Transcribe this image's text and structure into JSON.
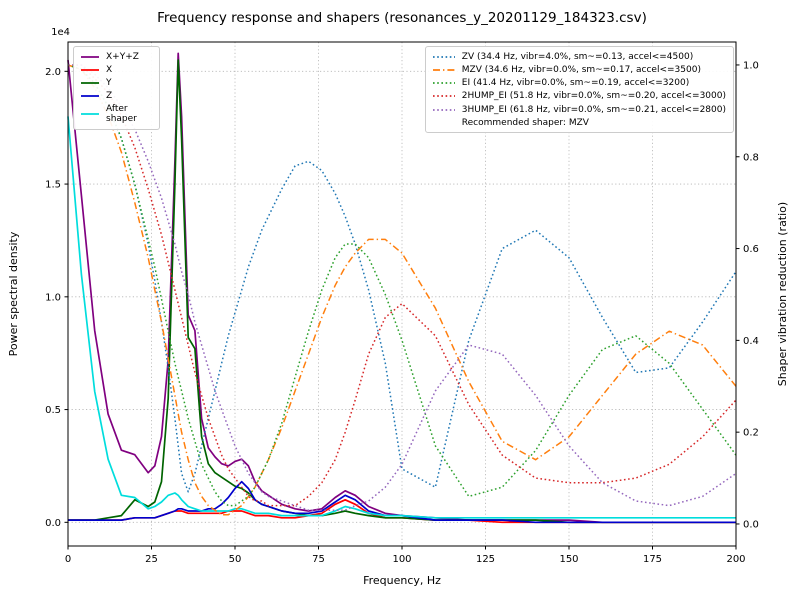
{
  "chart_data": {
    "type": "line",
    "title": "Frequency response and shapers (resonances_y_20201129_184323.csv)",
    "xlabel": "Frequency, Hz",
    "ylabel_left": "Power spectral density",
    "ylabel_right": "Shaper vibration reduction (ratio)",
    "y_left_offset_text": "1e4",
    "y_left_unit_multiplier": 10000,
    "grid": true,
    "xlim": [
      0,
      200
    ],
    "y_left_lim": [
      -0.105,
      2.13
    ],
    "y_right_lim": [
      -0.048,
      1.05
    ],
    "x_ticks": [
      0,
      25,
      50,
      75,
      100,
      125,
      150,
      175,
      200
    ],
    "y_left_ticks": [
      0.0,
      0.5,
      1.0,
      1.5,
      2.0
    ],
    "y_right_ticks": [
      0.0,
      0.2,
      0.4,
      0.6,
      0.8,
      1.0
    ],
    "x": [
      0,
      4,
      8,
      12,
      16,
      20,
      24,
      26,
      28,
      30,
      32,
      33,
      34,
      36,
      38,
      40,
      42,
      44,
      46,
      48,
      50,
      52,
      54,
      56,
      58,
      60,
      64,
      68,
      72,
      76,
      80,
      83,
      86,
      90,
      95,
      100,
      110,
      120,
      130,
      140,
      150,
      160,
      170,
      180,
      190,
      200
    ],
    "psd_series": [
      {
        "name": "X+Y+Z",
        "axis": "left",
        "color": "#800080",
        "style": "solid",
        "values": [
          2.05,
          1.45,
          0.85,
          0.48,
          0.32,
          0.3,
          0.22,
          0.25,
          0.38,
          0.72,
          1.6,
          2.08,
          1.8,
          0.92,
          0.85,
          0.46,
          0.33,
          0.29,
          0.26,
          0.25,
          0.27,
          0.28,
          0.25,
          0.18,
          0.14,
          0.12,
          0.08,
          0.06,
          0.05,
          0.06,
          0.11,
          0.14,
          0.12,
          0.07,
          0.04,
          0.03,
          0.02,
          0.01,
          0.01,
          0.01,
          0.01,
          0.0,
          0.0,
          0.0,
          0.0,
          0.0
        ]
      },
      {
        "name": "X",
        "axis": "left",
        "color": "#ff0000",
        "style": "solid",
        "values": [
          0.01,
          0.01,
          0.01,
          0.01,
          0.01,
          0.02,
          0.02,
          0.02,
          0.03,
          0.04,
          0.05,
          0.05,
          0.05,
          0.04,
          0.04,
          0.04,
          0.04,
          0.04,
          0.04,
          0.05,
          0.05,
          0.05,
          0.04,
          0.03,
          0.03,
          0.03,
          0.02,
          0.02,
          0.03,
          0.04,
          0.08,
          0.1,
          0.08,
          0.04,
          0.02,
          0.02,
          0.01,
          0.01,
          0.0,
          0.0,
          0.0,
          0.0,
          0.0,
          0.0,
          0.0,
          0.0
        ]
      },
      {
        "name": "Y",
        "axis": "left",
        "color": "#006400",
        "style": "solid",
        "values": [
          0.01,
          0.01,
          0.01,
          0.02,
          0.03,
          0.1,
          0.07,
          0.09,
          0.18,
          0.55,
          1.5,
          2.05,
          1.7,
          0.82,
          0.77,
          0.38,
          0.26,
          0.22,
          0.2,
          0.18,
          0.16,
          0.15,
          0.13,
          0.1,
          0.08,
          0.07,
          0.05,
          0.04,
          0.03,
          0.03,
          0.04,
          0.05,
          0.04,
          0.03,
          0.02,
          0.02,
          0.01,
          0.01,
          0.01,
          0.01,
          0.0,
          0.0,
          0.0,
          0.0,
          0.0,
          0.0
        ]
      },
      {
        "name": "Z",
        "axis": "left",
        "color": "#0000cc",
        "style": "solid",
        "values": [
          0.01,
          0.01,
          0.01,
          0.01,
          0.01,
          0.02,
          0.02,
          0.02,
          0.03,
          0.04,
          0.05,
          0.06,
          0.06,
          0.05,
          0.05,
          0.05,
          0.06,
          0.06,
          0.08,
          0.11,
          0.15,
          0.18,
          0.15,
          0.1,
          0.08,
          0.07,
          0.05,
          0.04,
          0.04,
          0.05,
          0.09,
          0.12,
          0.1,
          0.05,
          0.03,
          0.03,
          0.01,
          0.01,
          0.01,
          0.0,
          0.0,
          0.0,
          0.0,
          0.0,
          0.0,
          0.0
        ]
      },
      {
        "name": "After shaper",
        "axis": "left",
        "color": "#00dddd",
        "style": "solid",
        "values": [
          1.8,
          1.1,
          0.58,
          0.28,
          0.12,
          0.11,
          0.06,
          0.07,
          0.09,
          0.12,
          0.13,
          0.12,
          0.1,
          0.07,
          0.06,
          0.05,
          0.05,
          0.05,
          0.05,
          0.05,
          0.06,
          0.06,
          0.05,
          0.04,
          0.04,
          0.04,
          0.03,
          0.03,
          0.03,
          0.03,
          0.05,
          0.07,
          0.06,
          0.04,
          0.03,
          0.03,
          0.02,
          0.02,
          0.02,
          0.02,
          0.02,
          0.02,
          0.02,
          0.02,
          0.02,
          0.02
        ]
      }
    ],
    "shaper_series": [
      {
        "name": "ZV",
        "axis": "right",
        "color": "#1f77b4",
        "style": "dotted",
        "values": [
          1.0,
          0.99,
          0.96,
          0.91,
          0.84,
          0.74,
          0.61,
          0.53,
          0.44,
          0.34,
          0.23,
          0.17,
          0.11,
          0.07,
          0.11,
          0.17,
          0.23,
          0.29,
          0.35,
          0.41,
          0.46,
          0.51,
          0.56,
          0.6,
          0.64,
          0.67,
          0.73,
          0.78,
          0.79,
          0.77,
          0.72,
          0.67,
          0.61,
          0.51,
          0.35,
          0.12,
          0.08,
          0.4,
          0.6,
          0.64,
          0.58,
          0.45,
          0.33,
          0.34,
          0.44,
          0.55
        ]
      },
      {
        "name": "MZV",
        "axis": "right",
        "color": "#ff7f0e",
        "style": "dashdot",
        "values": [
          1.0,
          0.99,
          0.95,
          0.89,
          0.81,
          0.7,
          0.58,
          0.51,
          0.44,
          0.36,
          0.28,
          0.24,
          0.2,
          0.14,
          0.09,
          0.06,
          0.04,
          0.03,
          0.02,
          0.02,
          0.03,
          0.04,
          0.06,
          0.08,
          0.11,
          0.14,
          0.21,
          0.29,
          0.37,
          0.45,
          0.52,
          0.56,
          0.59,
          0.62,
          0.62,
          0.59,
          0.47,
          0.31,
          0.18,
          0.14,
          0.19,
          0.28,
          0.37,
          0.42,
          0.39,
          0.3
        ]
      },
      {
        "name": "EI",
        "axis": "right",
        "color": "#2ca02c",
        "style": "dotted",
        "values": [
          1.0,
          0.99,
          0.96,
          0.91,
          0.84,
          0.74,
          0.62,
          0.56,
          0.49,
          0.42,
          0.35,
          0.32,
          0.29,
          0.23,
          0.18,
          0.13,
          0.1,
          0.07,
          0.05,
          0.04,
          0.04,
          0.05,
          0.06,
          0.08,
          0.11,
          0.14,
          0.22,
          0.32,
          0.42,
          0.51,
          0.58,
          0.61,
          0.61,
          0.58,
          0.5,
          0.4,
          0.17,
          0.06,
          0.08,
          0.16,
          0.28,
          0.38,
          0.41,
          0.35,
          0.25,
          0.15
        ]
      },
      {
        "name": "2HUMP_EI",
        "axis": "right",
        "color": "#d62728",
        "style": "dotted",
        "values": [
          1.0,
          1.0,
          0.97,
          0.94,
          0.89,
          0.82,
          0.73,
          0.68,
          0.63,
          0.57,
          0.51,
          0.48,
          0.45,
          0.39,
          0.33,
          0.28,
          0.23,
          0.19,
          0.15,
          0.12,
          0.1,
          0.08,
          0.06,
          0.05,
          0.05,
          0.04,
          0.04,
          0.04,
          0.06,
          0.09,
          0.14,
          0.2,
          0.27,
          0.37,
          0.45,
          0.48,
          0.41,
          0.26,
          0.15,
          0.1,
          0.09,
          0.09,
          0.1,
          0.13,
          0.19,
          0.27
        ]
      },
      {
        "name": "3HUMP_EI",
        "axis": "right",
        "color": "#9467bd",
        "style": "dotted",
        "values": [
          1.0,
          1.0,
          0.98,
          0.95,
          0.91,
          0.86,
          0.79,
          0.75,
          0.71,
          0.66,
          0.61,
          0.58,
          0.55,
          0.5,
          0.44,
          0.39,
          0.34,
          0.29,
          0.25,
          0.21,
          0.17,
          0.14,
          0.11,
          0.09,
          0.07,
          0.06,
          0.05,
          0.04,
          0.03,
          0.03,
          0.03,
          0.03,
          0.04,
          0.05,
          0.08,
          0.13,
          0.29,
          0.39,
          0.37,
          0.28,
          0.17,
          0.09,
          0.05,
          0.04,
          0.06,
          0.11
        ]
      }
    ],
    "legend_psd": {
      "position": "upper-left",
      "items": [
        {
          "label": "X+Y+Z",
          "color": "#800080",
          "style": "solid",
          "wrap": false
        },
        {
          "label": "X",
          "color": "#ff0000",
          "style": "solid",
          "wrap": false
        },
        {
          "label": "Y",
          "color": "#006400",
          "style": "solid",
          "wrap": false
        },
        {
          "label": "Z",
          "color": "#0000cc",
          "style": "solid",
          "wrap": false
        },
        {
          "label": "After shaper",
          "color": "#00dddd",
          "style": "solid",
          "wrap": true
        }
      ]
    },
    "legend_shapers": {
      "position": "upper-right",
      "items": [
        {
          "label": "ZV (34.4 Hz, vibr=4.0%, sm~=0.13, accel<=4500)",
          "color": "#1f77b4",
          "style": "dotted"
        },
        {
          "label": "MZV (34.6 Hz, vibr=0.0%, sm~=0.17, accel<=3500)",
          "color": "#ff7f0e",
          "style": "dashdot"
        },
        {
          "label": "EI (41.4 Hz, vibr=0.0%, sm~=0.19, accel<=3200)",
          "color": "#2ca02c",
          "style": "dotted"
        },
        {
          "label": "2HUMP_EI (51.8 Hz, vibr=0.0%, sm~=0.20, accel<=3000)",
          "color": "#d62728",
          "style": "dotted"
        },
        {
          "label": "3HUMP_EI (61.8 Hz, vibr=0.0%, sm~=0.21, accel<=2800)",
          "color": "#9467bd",
          "style": "dotted"
        }
      ],
      "note": "Recommended shaper: MZV"
    }
  }
}
